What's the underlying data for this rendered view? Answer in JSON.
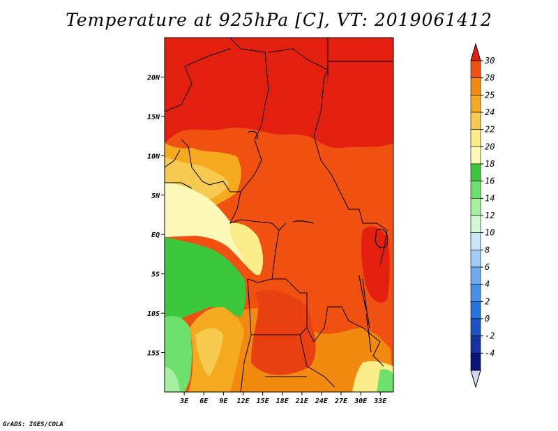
{
  "title": "Temperature at 925hPa [C], VT: 2019061412",
  "credit": "GrADS: IGES/COLA",
  "map": {
    "lon_range": [
      0,
      35
    ],
    "lat_range": [
      -20,
      25
    ],
    "x_ticks": [
      "3E",
      "6E",
      "9E",
      "12E",
      "15E",
      "18E",
      "21E",
      "24E",
      "27E",
      "30E",
      "33E"
    ],
    "y_ticks": [
      "20N",
      "15N",
      "10N",
      "5N",
      "EQ",
      "5S",
      "10S",
      "15S"
    ]
  },
  "colorbar": {
    "labels": [
      "30",
      "28",
      "25",
      "24",
      "22",
      "20",
      "18",
      "16",
      "14",
      "12",
      "10",
      "8",
      "6",
      "4",
      "2",
      "0",
      "-2",
      "-4"
    ],
    "colors": [
      "#e32010",
      "#f05010",
      "#f28a10",
      "#f5aa20",
      "#f7cb50",
      "#faed8a",
      "#fdf9b8",
      "#3cc83c",
      "#6ee06e",
      "#a6f0a0",
      "#d2fad2",
      "#c8e6fa",
      "#a0cdf5",
      "#6eaaf0",
      "#4691e6",
      "#2373dc",
      "#1e50c8",
      "#1432a0",
      "#0a1478",
      "#d4d4f5"
    ]
  }
}
